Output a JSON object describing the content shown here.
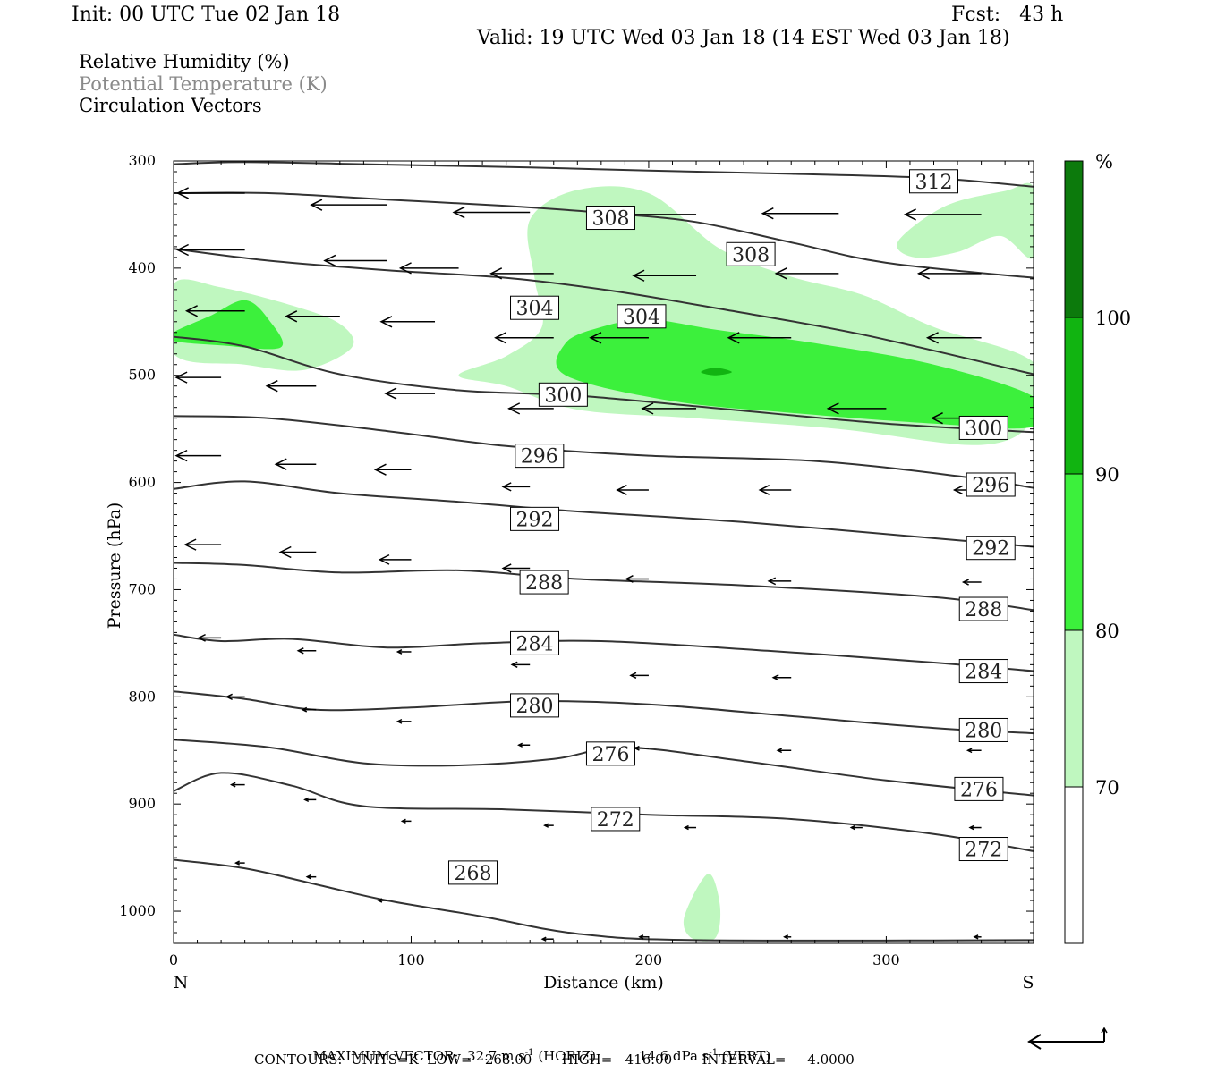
{
  "header": {
    "init": "Init: 00 UTC Tue 02 Jan 18",
    "fcst": "Fcst:   43 h",
    "valid": "Valid: 19 UTC Wed 03 Jan 18 (14 EST Wed 03 Jan 18)"
  },
  "fields": [
    {
      "label": "Relative Humidity (%)",
      "color": "#000000"
    },
    {
      "label": "Potential Temperature (K)",
      "color": "#8a8a8a"
    },
    {
      "label": "Circulation Vectors",
      "color": "#000000"
    }
  ],
  "colorbar": {
    "unit": "%",
    "levels": [
      70,
      80,
      90,
      100
    ],
    "colors": [
      "#ffffff",
      "#bff7bf",
      "#3cf03c",
      "#11b411",
      "#0c7a0c"
    ]
  },
  "footer": {
    "max_vector_label": "MAXIMUM VECTOR:",
    "horiz": "32.7 m s",
    "horiz_unit": "(HORIZ)",
    "vert": "14.6 dPa s",
    "vert_unit": "(VERT)",
    "exp": "-1",
    "contours": "CONTOURS:  UNITS=K  LOW=   268.00       HIGH=   416.00       INTERVAL=     4.0000"
  },
  "chart_data": {
    "type": "contour",
    "xlabel": "Distance (km)",
    "ylabel": "Pressure (hPa)",
    "xlim": [
      0,
      362
    ],
    "ylim": [
      300,
      1030
    ],
    "x_ticks": [
      0,
      100,
      200,
      300
    ],
    "y_ticks": [
      300,
      400,
      500,
      600,
      700,
      800,
      900,
      1000
    ],
    "x_end_labels": {
      "left": "N",
      "right": "S"
    },
    "contour_labels": [
      {
        "text": "312",
        "x": 320,
        "p": 319
      },
      {
        "text": "308",
        "x": 184,
        "p": 353
      },
      {
        "text": "308",
        "x": 243,
        "p": 387
      },
      {
        "text": "304",
        "x": 152,
        "p": 437
      },
      {
        "text": "304",
        "x": 197,
        "p": 445
      },
      {
        "text": "300",
        "x": 164,
        "p": 518
      },
      {
        "text": "300",
        "x": 341,
        "p": 549
      },
      {
        "text": "296",
        "x": 154,
        "p": 575
      },
      {
        "text": "296",
        "x": 344,
        "p": 602
      },
      {
        "text": "292",
        "x": 152,
        "p": 634
      },
      {
        "text": "292",
        "x": 344,
        "p": 661
      },
      {
        "text": "288",
        "x": 156,
        "p": 693
      },
      {
        "text": "288",
        "x": 341,
        "p": 718
      },
      {
        "text": "284",
        "x": 152,
        "p": 750
      },
      {
        "text": "284",
        "x": 341,
        "p": 776
      },
      {
        "text": "280",
        "x": 152,
        "p": 808
      },
      {
        "text": "280",
        "x": 341,
        "p": 831
      },
      {
        "text": "276",
        "x": 184,
        "p": 853
      },
      {
        "text": "276",
        "x": 339,
        "p": 886
      },
      {
        "text": "272",
        "x": 186,
        "p": 914
      },
      {
        "text": "272",
        "x": 341,
        "p": 942
      },
      {
        "text": "268",
        "x": 126,
        "p": 964
      }
    ],
    "theta_lines": [
      {
        "level": 312,
        "points": [
          [
            0,
            303
          ],
          [
            30,
            301
          ],
          [
            80,
            303
          ],
          [
            150,
            306
          ],
          [
            200,
            309
          ],
          [
            260,
            312
          ],
          [
            320,
            316
          ],
          [
            362,
            324
          ]
        ]
      },
      {
        "level": 308,
        "points": [
          [
            0,
            330
          ],
          [
            40,
            330
          ],
          [
            90,
            336
          ],
          [
            140,
            342
          ],
          [
            184,
            349
          ],
          [
            220,
            357
          ],
          [
            260,
            376
          ],
          [
            300,
            395
          ],
          [
            362,
            409
          ]
        ]
      },
      {
        "level": 304,
        "points": [
          [
            0,
            382
          ],
          [
            40,
            393
          ],
          [
            90,
            402
          ],
          [
            140,
            409
          ],
          [
            184,
            421
          ],
          [
            230,
            438
          ],
          [
            290,
            462
          ],
          [
            362,
            499
          ]
        ]
      },
      {
        "level": 300,
        "points": [
          [
            0,
            464
          ],
          [
            30,
            473
          ],
          [
            70,
            499
          ],
          [
            120,
            514
          ],
          [
            170,
            519
          ],
          [
            230,
            531
          ],
          [
            300,
            545
          ],
          [
            362,
            553
          ]
        ]
      },
      {
        "level": 296,
        "points": [
          [
            0,
            538
          ],
          [
            40,
            540
          ],
          [
            90,
            552
          ],
          [
            140,
            566
          ],
          [
            200,
            575
          ],
          [
            270,
            580
          ],
          [
            330,
            594
          ],
          [
            362,
            605
          ]
        ]
      },
      {
        "level": 292,
        "points": [
          [
            0,
            606
          ],
          [
            30,
            599
          ],
          [
            70,
            610
          ],
          [
            120,
            618
          ],
          [
            170,
            627
          ],
          [
            240,
            637
          ],
          [
            320,
            652
          ],
          [
            362,
            660
          ]
        ]
      },
      {
        "level": 288,
        "points": [
          [
            0,
            675
          ],
          [
            30,
            677
          ],
          [
            70,
            684
          ],
          [
            120,
            682
          ],
          [
            170,
            690
          ],
          [
            240,
            696
          ],
          [
            320,
            707
          ],
          [
            362,
            719
          ]
        ]
      },
      {
        "level": 284,
        "points": [
          [
            0,
            742
          ],
          [
            20,
            748
          ],
          [
            50,
            746
          ],
          [
            90,
            754
          ],
          [
            130,
            750
          ],
          [
            180,
            748
          ],
          [
            250,
            757
          ],
          [
            320,
            768
          ],
          [
            362,
            776
          ]
        ]
      },
      {
        "level": 280,
        "points": [
          [
            0,
            795
          ],
          [
            30,
            802
          ],
          [
            60,
            812
          ],
          [
            100,
            810
          ],
          [
            150,
            804
          ],
          [
            200,
            807
          ],
          [
            260,
            818
          ],
          [
            320,
            829
          ],
          [
            362,
            834
          ]
        ]
      },
      {
        "level": 276,
        "points": [
          [
            0,
            840
          ],
          [
            40,
            847
          ],
          [
            80,
            862
          ],
          [
            120,
            864
          ],
          [
            160,
            858
          ],
          [
            190,
            847
          ],
          [
            240,
            860
          ],
          [
            300,
            878
          ],
          [
            362,
            892
          ]
        ]
      },
      {
        "level": 272,
        "points": [
          [
            0,
            888
          ],
          [
            20,
            871
          ],
          [
            50,
            883
          ],
          [
            80,
            902
          ],
          [
            140,
            905
          ],
          [
            200,
            910
          ],
          [
            260,
            914
          ],
          [
            320,
            928
          ],
          [
            362,
            944
          ]
        ]
      },
      {
        "level": 268,
        "points": [
          [
            0,
            952
          ],
          [
            30,
            960
          ],
          [
            60,
            975
          ],
          [
            90,
            990
          ],
          [
            130,
            1005
          ],
          [
            170,
            1021
          ],
          [
            220,
            1027
          ],
          [
            362,
            1027
          ]
        ]
      }
    ],
    "rh_regions": [
      {
        "level": "70-80",
        "color": "#bff7bf",
        "points": [
          [
            150,
            355
          ],
          [
            170,
            327
          ],
          [
            200,
            330
          ],
          [
            230,
            382
          ],
          [
            260,
            408
          ],
          [
            290,
            425
          ],
          [
            320,
            455
          ],
          [
            362,
            488
          ],
          [
            362,
            540
          ],
          [
            340,
            565
          ],
          [
            280,
            550
          ],
          [
            220,
            540
          ],
          [
            170,
            532
          ],
          [
            140,
            510
          ],
          [
            120,
            500
          ],
          [
            140,
            482
          ],
          [
            155,
            455
          ],
          [
            152,
            410
          ]
        ]
      },
      {
        "level": "70-80",
        "color": "#bff7bf",
        "points": [
          [
            0,
            415
          ],
          [
            20,
            418
          ],
          [
            50,
            435
          ],
          [
            70,
            452
          ],
          [
            75,
            474
          ],
          [
            55,
            495
          ],
          [
            30,
            490
          ],
          [
            0,
            480
          ]
        ]
      },
      {
        "level": "70-80",
        "color": "#bff7bf",
        "points": [
          [
            305,
            375
          ],
          [
            325,
            342
          ],
          [
            350,
            328
          ],
          [
            362,
            325
          ],
          [
            362,
            390
          ],
          [
            348,
            370
          ],
          [
            330,
            385
          ],
          [
            312,
            390
          ]
        ]
      },
      {
        "level": "70-80",
        "color": "#bff7bf",
        "points": [
          [
            215,
            1005
          ],
          [
            225,
            965
          ],
          [
            230,
            995
          ],
          [
            228,
            1025
          ],
          [
            218,
            1025
          ]
        ]
      },
      {
        "level": "80-90",
        "color": "#3cf03c",
        "points": [
          [
            165,
            470
          ],
          [
            180,
            455
          ],
          [
            200,
            448
          ],
          [
            230,
            458
          ],
          [
            270,
            470
          ],
          [
            320,
            490
          ],
          [
            362,
            520
          ],
          [
            362,
            548
          ],
          [
            320,
            545
          ],
          [
            260,
            535
          ],
          [
            210,
            524
          ],
          [
            165,
            500
          ]
        ]
      },
      {
        "level": "80-90",
        "color": "#3cf03c",
        "points": [
          [
            0,
            460
          ],
          [
            15,
            445
          ],
          [
            30,
            430
          ],
          [
            40,
            448
          ],
          [
            45,
            474
          ],
          [
            20,
            472
          ],
          [
            0,
            468
          ]
        ]
      },
      {
        "level": "90-100",
        "color": "#11b411",
        "points": [
          [
            222,
            497
          ],
          [
            228,
            493
          ],
          [
            235,
            497
          ],
          [
            228,
            500
          ]
        ]
      }
    ],
    "vectors": [
      {
        "x": 30,
        "p": 330,
        "u": -30
      },
      {
        "x": 90,
        "p": 341,
        "u": -34
      },
      {
        "x": 150,
        "p": 348,
        "u": -34
      },
      {
        "x": 220,
        "p": 350,
        "u": -34
      },
      {
        "x": 280,
        "p": 349,
        "u": -34
      },
      {
        "x": 340,
        "p": 350,
        "u": -34
      },
      {
        "x": 30,
        "p": 383,
        "u": -30
      },
      {
        "x": 90,
        "p": 393,
        "u": -28
      },
      {
        "x": 120,
        "p": 400,
        "u": -26
      },
      {
        "x": 160,
        "p": 405,
        "u": -28
      },
      {
        "x": 220,
        "p": 407,
        "u": -28
      },
      {
        "x": 280,
        "p": 405,
        "u": -28
      },
      {
        "x": 340,
        "p": 405,
        "u": -28
      },
      {
        "x": 30,
        "p": 440,
        "u": -26
      },
      {
        "x": 70,
        "p": 445,
        "u": -24
      },
      {
        "x": 110,
        "p": 450,
        "u": -24
      },
      {
        "x": 160,
        "p": 465,
        "u": -26
      },
      {
        "x": 200,
        "p": 465,
        "u": -26
      },
      {
        "x": 260,
        "p": 465,
        "u": -28
      },
      {
        "x": 340,
        "p": 465,
        "u": -24
      },
      {
        "x": 20,
        "p": 502,
        "u": -20
      },
      {
        "x": 60,
        "p": 510,
        "u": -22
      },
      {
        "x": 110,
        "p": 517,
        "u": -22
      },
      {
        "x": 160,
        "p": 531,
        "u": -20
      },
      {
        "x": 220,
        "p": 531,
        "u": -24
      },
      {
        "x": 300,
        "p": 531,
        "u": -26
      },
      {
        "x": 340,
        "p": 540,
        "u": -22
      },
      {
        "x": 20,
        "p": 575,
        "u": -20
      },
      {
        "x": 60,
        "p": 583,
        "u": -18
      },
      {
        "x": 100,
        "p": 588,
        "u": -16
      },
      {
        "x": 150,
        "p": 604,
        "u": -12
      },
      {
        "x": 200,
        "p": 607,
        "u": -14
      },
      {
        "x": 260,
        "p": 607,
        "u": -14
      },
      {
        "x": 340,
        "p": 607,
        "u": -12
      },
      {
        "x": 20,
        "p": 658,
        "u": -16
      },
      {
        "x": 60,
        "p": 665,
        "u": -16
      },
      {
        "x": 100,
        "p": 672,
        "u": -14
      },
      {
        "x": 150,
        "p": 680,
        "u": -12
      },
      {
        "x": 200,
        "p": 690,
        "u": -10
      },
      {
        "x": 260,
        "p": 692,
        "u": -10
      },
      {
        "x": 340,
        "p": 693,
        "u": -8
      },
      {
        "x": 20,
        "p": 745,
        "u": -10
      },
      {
        "x": 60,
        "p": 757,
        "u": -8
      },
      {
        "x": 100,
        "p": 758,
        "u": -6
      },
      {
        "x": 150,
        "p": 770,
        "u": -8
      },
      {
        "x": 200,
        "p": 780,
        "u": -8
      },
      {
        "x": 260,
        "p": 782,
        "u": -8
      },
      {
        "x": 340,
        "p": 782,
        "u": -8
      },
      {
        "x": 30,
        "p": 800,
        "u": -8
      },
      {
        "x": 60,
        "p": 812,
        "u": -6
      },
      {
        "x": 100,
        "p": 823,
        "u": -6
      },
      {
        "x": 150,
        "p": 845,
        "u": -5
      },
      {
        "x": 200,
        "p": 848,
        "u": -6
      },
      {
        "x": 260,
        "p": 850,
        "u": -6
      },
      {
        "x": 340,
        "p": 850,
        "u": -6
      },
      {
        "x": 30,
        "p": 882,
        "u": -6
      },
      {
        "x": 60,
        "p": 896,
        "u": -5
      },
      {
        "x": 100,
        "p": 916,
        "u": -4
      },
      {
        "x": 160,
        "p": 920,
        "u": -4
      },
      {
        "x": 220,
        "p": 922,
        "u": -5
      },
      {
        "x": 290,
        "p": 922,
        "u": -5
      },
      {
        "x": 340,
        "p": 922,
        "u": -5
      },
      {
        "x": 30,
        "p": 955,
        "u": -4
      },
      {
        "x": 60,
        "p": 968,
        "u": -4
      },
      {
        "x": 90,
        "p": 990,
        "u": -4
      },
      {
        "x": 160,
        "p": 1026,
        "u": -5
      },
      {
        "x": 200,
        "p": 1024,
        "u": -4
      },
      {
        "x": 260,
        "p": 1024,
        "u": -3
      },
      {
        "x": 340,
        "p": 1024,
        "u": -3
      }
    ]
  }
}
